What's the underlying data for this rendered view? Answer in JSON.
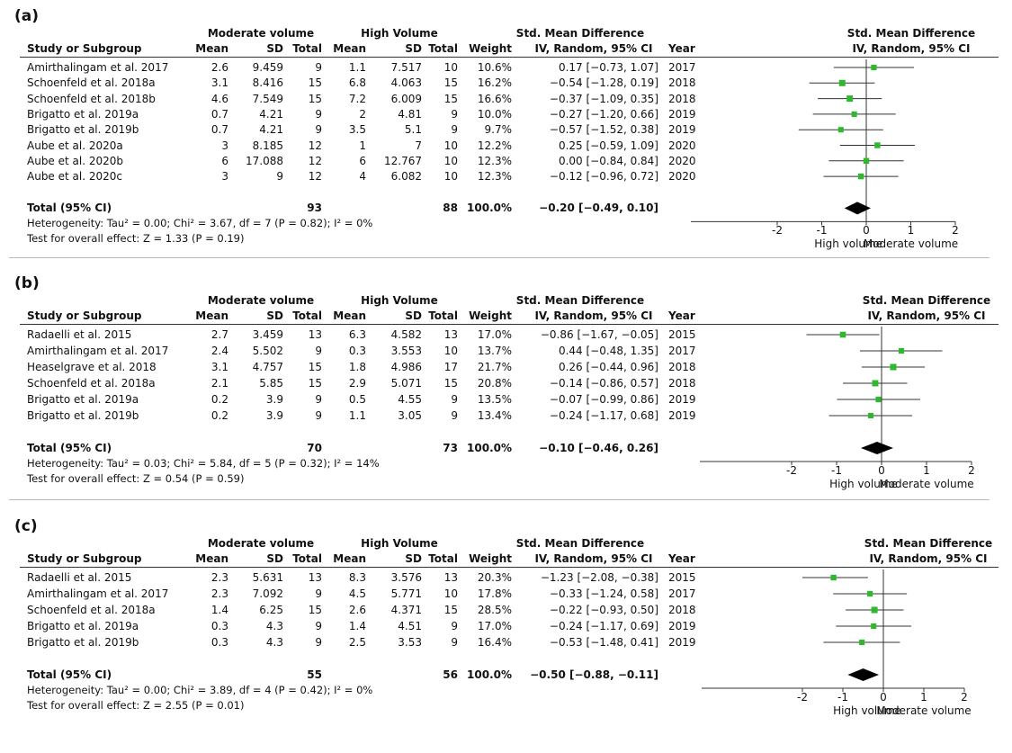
{
  "colors": {
    "point": "#2db82d",
    "diamond": "#000000",
    "line": "#333333"
  },
  "column_headers": {
    "study": "Study or Subgroup",
    "mean": "Mean",
    "sd": "SD",
    "total": "Total",
    "weight": "Weight",
    "smd_ci": "IV, Random, 95% CI",
    "year": "Year",
    "group_moderate": "Moderate volume",
    "group_high": "High Volume",
    "smd_title": "Std. Mean Difference"
  },
  "chart_data": [
    {
      "type": "forest",
      "panel_label": "(a)",
      "x_ticks": [
        "-2",
        "-1",
        "0",
        "1",
        "2"
      ],
      "xlim": [
        -2,
        2
      ],
      "axis_left_label": "High volume",
      "axis_right_label": "Moderate volume",
      "studies": [
        {
          "name": "Amirthalingam et al. 2017",
          "mod_mean": "2.6",
          "mod_sd": "9.459",
          "mod_total": "9",
          "high_mean": "1.1",
          "high_sd": "7.517",
          "high_total": "10",
          "weight": "10.6%",
          "ci_text": "0.17 [−0.73, 1.07]",
          "year": "2017",
          "smd": 0.17,
          "lo": -0.73,
          "hi": 1.07,
          "w": 10.6
        },
        {
          "name": "Schoenfeld et al. 2018a",
          "mod_mean": "3.1",
          "mod_sd": "8.416",
          "mod_total": "15",
          "high_mean": "6.8",
          "high_sd": "4.063",
          "high_total": "15",
          "weight": "16.2%",
          "ci_text": "−0.54 [−1.28, 0.19]",
          "year": "2018",
          "smd": -0.54,
          "lo": -1.28,
          "hi": 0.19,
          "w": 16.2
        },
        {
          "name": "Schoenfeld et al. 2018b",
          "mod_mean": "4.6",
          "mod_sd": "7.549",
          "mod_total": "15",
          "high_mean": "7.2",
          "high_sd": "6.009",
          "high_total": "15",
          "weight": "16.6%",
          "ci_text": "−0.37 [−1.09, 0.35]",
          "year": "2018",
          "smd": -0.37,
          "lo": -1.09,
          "hi": 0.35,
          "w": 16.6
        },
        {
          "name": "Brigatto et al. 2019a",
          "mod_mean": "0.7",
          "mod_sd": "4.21",
          "mod_total": "9",
          "high_mean": "2",
          "high_sd": "4.81",
          "high_total": "9",
          "weight": "10.0%",
          "ci_text": "−0.27 [−1.20, 0.66]",
          "year": "2019",
          "smd": -0.27,
          "lo": -1.2,
          "hi": 0.66,
          "w": 10.0
        },
        {
          "name": "Brigatto et al. 2019b",
          "mod_mean": "0.7",
          "mod_sd": "4.21",
          "mod_total": "9",
          "high_mean": "3.5",
          "high_sd": "5.1",
          "high_total": "9",
          "weight": "9.7%",
          "ci_text": "−0.57 [−1.52, 0.38]",
          "year": "2019",
          "smd": -0.57,
          "lo": -1.52,
          "hi": 0.38,
          "w": 9.7
        },
        {
          "name": "Aube et al. 2020a",
          "mod_mean": "3",
          "mod_sd": "8.185",
          "mod_total": "12",
          "high_mean": "1",
          "high_sd": "7",
          "high_total": "10",
          "weight": "12.2%",
          "ci_text": "0.25 [−0.59, 1.09]",
          "year": "2020",
          "smd": 0.25,
          "lo": -0.59,
          "hi": 1.09,
          "w": 12.2
        },
        {
          "name": "Aube et al. 2020b",
          "mod_mean": "6",
          "mod_sd": "17.088",
          "mod_total": "12",
          "high_mean": "6",
          "high_sd": "12.767",
          "high_total": "10",
          "weight": "12.3%",
          "ci_text": "0.00 [−0.84, 0.84]",
          "year": "2020",
          "smd": 0.0,
          "lo": -0.84,
          "hi": 0.84,
          "w": 12.3
        },
        {
          "name": "Aube et al. 2020c",
          "mod_mean": "3",
          "mod_sd": "9",
          "mod_total": "12",
          "high_mean": "4",
          "high_sd": "6.082",
          "high_total": "10",
          "weight": "12.3%",
          "ci_text": "−0.12 [−0.96, 0.72]",
          "year": "2020",
          "smd": -0.12,
          "lo": -0.96,
          "hi": 0.72,
          "w": 12.3
        }
      ],
      "total": {
        "label": "Total (95% CI)",
        "mod_total": "93",
        "high_total": "88",
        "weight": "100.0%",
        "ci_text": "−0.20 [−0.49, 0.10]",
        "smd": -0.2,
        "lo": -0.49,
        "hi": 0.1
      },
      "heterogeneity": "Heterogeneity: Tau² = 0.00; Chi² = 3.67, df = 7 (P = 0.82); I² = 0%",
      "overall_effect": "Test for overall effect: Z = 1.33 (P = 0.19)"
    },
    {
      "type": "forest",
      "panel_label": "(b)",
      "x_ticks": [
        "-2",
        "-1",
        "0",
        "1",
        "2"
      ],
      "xlim": [
        -2,
        2
      ],
      "axis_left_label": "High volume",
      "axis_right_label": "Moderate volume",
      "studies": [
        {
          "name": "Radaelli et al. 2015",
          "mod_mean": "2.7",
          "mod_sd": "3.459",
          "mod_total": "13",
          "high_mean": "6.3",
          "high_sd": "4.582",
          "high_total": "13",
          "weight": "17.0%",
          "ci_text": "−0.86 [−1.67, −0.05]",
          "year": "2015",
          "smd": -0.86,
          "lo": -1.67,
          "hi": -0.05,
          "w": 17.0
        },
        {
          "name": "Amirthalingam et al. 2017",
          "mod_mean": "2.4",
          "mod_sd": "5.502",
          "mod_total": "9",
          "high_mean": "0.3",
          "high_sd": "3.553",
          "high_total": "10",
          "weight": "13.7%",
          "ci_text": "0.44 [−0.48, 1.35]",
          "year": "2017",
          "smd": 0.44,
          "lo": -0.48,
          "hi": 1.35,
          "w": 13.7
        },
        {
          "name": "Heaselgrave et al. 2018",
          "mod_mean": "3.1",
          "mod_sd": "4.757",
          "mod_total": "15",
          "high_mean": "1.8",
          "high_sd": "4.986",
          "high_total": "17",
          "weight": "21.7%",
          "ci_text": "0.26 [−0.44, 0.96]",
          "year": "2018",
          "smd": 0.26,
          "lo": -0.44,
          "hi": 0.96,
          "w": 21.7
        },
        {
          "name": "Schoenfeld et al. 2018a",
          "mod_mean": "2.1",
          "mod_sd": "5.85",
          "mod_total": "15",
          "high_mean": "2.9",
          "high_sd": "5.071",
          "high_total": "15",
          "weight": "20.8%",
          "ci_text": "−0.14 [−0.86, 0.57]",
          "year": "2018",
          "smd": -0.14,
          "lo": -0.86,
          "hi": 0.57,
          "w": 20.8
        },
        {
          "name": "Brigatto et al. 2019a",
          "mod_mean": "0.2",
          "mod_sd": "3.9",
          "mod_total": "9",
          "high_mean": "0.5",
          "high_sd": "4.55",
          "high_total": "9",
          "weight": "13.5%",
          "ci_text": "−0.07 [−0.99, 0.86]",
          "year": "2019",
          "smd": -0.07,
          "lo": -0.99,
          "hi": 0.86,
          "w": 13.5
        },
        {
          "name": "Brigatto et al. 2019b",
          "mod_mean": "0.2",
          "mod_sd": "3.9",
          "mod_total": "9",
          "high_mean": "1.1",
          "high_sd": "3.05",
          "high_total": "9",
          "weight": "13.4%",
          "ci_text": "−0.24 [−1.17, 0.68]",
          "year": "2019",
          "smd": -0.24,
          "lo": -1.17,
          "hi": 0.68,
          "w": 13.4
        }
      ],
      "total": {
        "label": "Total (95% CI)",
        "mod_total": "70",
        "high_total": "73",
        "weight": "100.0%",
        "ci_text": "−0.10 [−0.46, 0.26]",
        "smd": -0.1,
        "lo": -0.46,
        "hi": 0.26
      },
      "heterogeneity": "Heterogeneity: Tau² = 0.03; Chi² = 5.84, df = 5 (P = 0.32); I² = 14%",
      "overall_effect": "Test for overall effect: Z = 0.54 (P = 0.59)"
    },
    {
      "type": "forest",
      "panel_label": "(c)",
      "x_ticks": [
        "-2",
        "-1",
        "0",
        "1",
        "2"
      ],
      "xlim": [
        -2,
        2
      ],
      "axis_left_label": "High volume",
      "axis_right_label": "Moderate volume",
      "studies": [
        {
          "name": "Radaelli et al. 2015",
          "mod_mean": "2.3",
          "mod_sd": "5.631",
          "mod_total": "13",
          "high_mean": "8.3",
          "high_sd": "3.576",
          "high_total": "13",
          "weight": "20.3%",
          "ci_text": "−1.23 [−2.08, −0.38]",
          "year": "2015",
          "smd": -1.23,
          "lo": -2.08,
          "hi": -0.38,
          "w": 20.3
        },
        {
          "name": "Amirthalingam et al. 2017",
          "mod_mean": "2.3",
          "mod_sd": "7.092",
          "mod_total": "9",
          "high_mean": "4.5",
          "high_sd": "5.771",
          "high_total": "10",
          "weight": "17.8%",
          "ci_text": "−0.33 [−1.24, 0.58]",
          "year": "2017",
          "smd": -0.33,
          "lo": -1.24,
          "hi": 0.58,
          "w": 17.8
        },
        {
          "name": "Schoenfeld et al. 2018a",
          "mod_mean": "1.4",
          "mod_sd": "6.25",
          "mod_total": "15",
          "high_mean": "2.6",
          "high_sd": "4.371",
          "high_total": "15",
          "weight": "28.5%",
          "ci_text": "−0.22 [−0.93, 0.50]",
          "year": "2018",
          "smd": -0.22,
          "lo": -0.93,
          "hi": 0.5,
          "w": 28.5
        },
        {
          "name": "Brigatto et al. 2019a",
          "mod_mean": "0.3",
          "mod_sd": "4.3",
          "mod_total": "9",
          "high_mean": "1.4",
          "high_sd": "4.51",
          "high_total": "9",
          "weight": "17.0%",
          "ci_text": "−0.24 [−1.17, 0.69]",
          "year": "2019",
          "smd": -0.24,
          "lo": -1.17,
          "hi": 0.69,
          "w": 17.0
        },
        {
          "name": "Brigatto et al. 2019b",
          "mod_mean": "0.3",
          "mod_sd": "4.3",
          "mod_total": "9",
          "high_mean": "2.5",
          "high_sd": "3.53",
          "high_total": "9",
          "weight": "16.4%",
          "ci_text": "−0.53 [−1.48, 0.41]",
          "year": "2019",
          "smd": -0.53,
          "lo": -1.48,
          "hi": 0.41,
          "w": 16.4
        }
      ],
      "total": {
        "label": "Total (95% CI)",
        "mod_total": "55",
        "high_total": "56",
        "weight": "100.0%",
        "ci_text": "−0.50 [−0.88, −0.11]",
        "smd": -0.5,
        "lo": -0.88,
        "hi": -0.11
      },
      "heterogeneity": "Heterogeneity: Tau² = 0.00; Chi² = 3.89, df = 4 (P = 0.42); I² = 0%",
      "overall_effect": "Test for overall effect: Z = 2.55 (P = 0.01)"
    }
  ]
}
